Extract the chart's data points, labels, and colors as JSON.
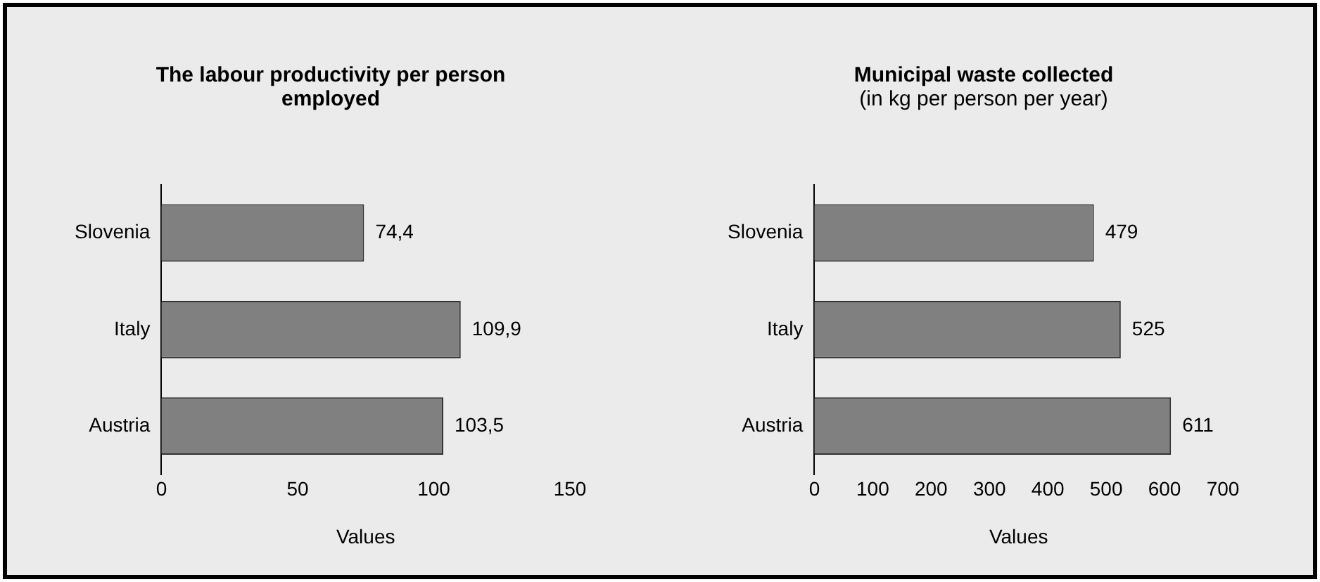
{
  "chart_data": [
    {
      "type": "bar",
      "orientation": "horizontal",
      "title": "The labour productivity per person employed",
      "xlabel": "Values",
      "categories": [
        "Slovenia",
        "Italy",
        "Austria"
      ],
      "values": [
        74.4,
        109.9,
        103.5
      ],
      "color": "#808080",
      "xlim": [
        0,
        150
      ],
      "xticks": [
        0,
        50,
        100,
        150
      ],
      "value_labels": [
        "74,4",
        "109,9",
        "103,5"
      ],
      "grid": false,
      "legend": false
    },
    {
      "type": "bar",
      "orientation": "horizontal",
      "title": "Municipal waste collected",
      "subtitle": "(in kg per person per year)",
      "xlabel": "Values",
      "categories": [
        "Slovenia",
        "Italy",
        "Austria"
      ],
      "values": [
        479,
        525,
        611
      ],
      "color": "#808080",
      "xlim": [
        0,
        700
      ],
      "xticks": [
        0,
        100,
        200,
        300,
        400,
        500,
        600,
        700
      ],
      "data_labels": true,
      "grid": false,
      "legend": false
    }
  ]
}
